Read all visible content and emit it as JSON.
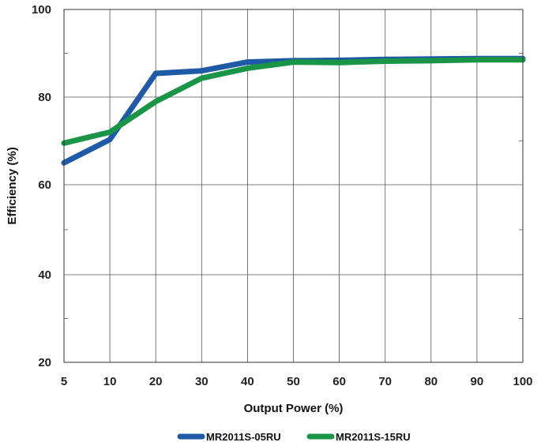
{
  "chart_data": {
    "type": "line",
    "xlabel": "Output Power (%)",
    "ylabel": "Efficiency (%)",
    "x_ticks": [
      "5",
      "10",
      "20",
      "30",
      "40",
      "50",
      "60",
      "70",
      "80",
      "90",
      "100"
    ],
    "y_ticks": [
      "20",
      "40",
      "60",
      "80",
      "100"
    ],
    "ylim": [
      20,
      100
    ],
    "grid": true,
    "legend_position": "bottom",
    "series": [
      {
        "name": "MR2011S-05RU",
        "color": "#1f5aa6",
        "x": [
          5,
          10,
          20,
          30,
          40,
          50,
          60,
          70,
          80,
          90,
          100
        ],
        "values": [
          65.0,
          70.3,
          85.4,
          86.0,
          88.0,
          88.3,
          88.4,
          88.6,
          88.7,
          88.8,
          88.8
        ]
      },
      {
        "name": "MR2011S-15RU",
        "color": "#1a9447",
        "x": [
          5,
          10,
          20,
          30,
          40,
          50,
          60,
          70,
          80,
          90,
          100
        ],
        "values": [
          69.5,
          72.0,
          79.0,
          84.3,
          86.6,
          88.0,
          87.9,
          88.2,
          88.3,
          88.5,
          88.5
        ]
      }
    ]
  }
}
